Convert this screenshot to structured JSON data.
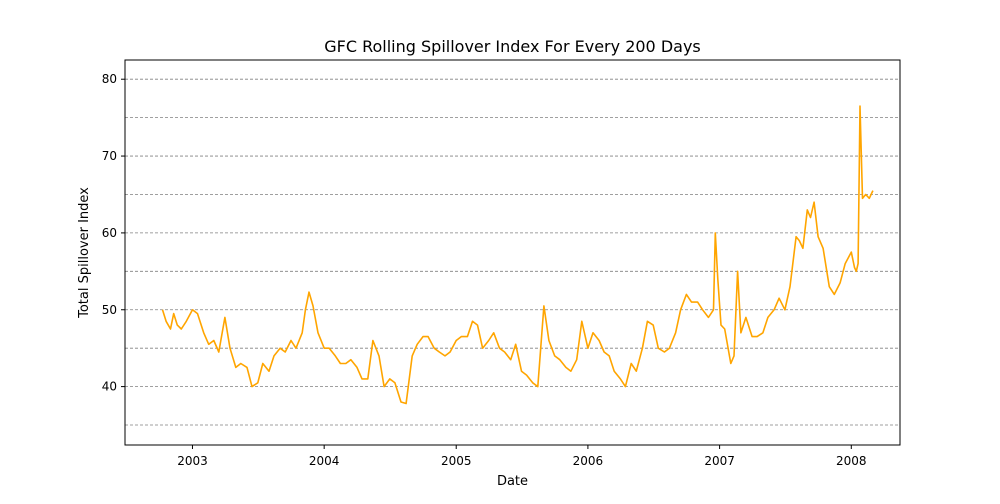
{
  "chart_data": {
    "type": "line",
    "title": "GFC Rolling Spillover Index For Every 200 Days",
    "xlabel": "Date",
    "ylabel": "Total Spillover Index",
    "xlim": [
      "2002-06-28",
      "2008-05-15"
    ],
    "ylim": [
      32.4,
      82.5
    ],
    "x_ticks": [
      {
        "date": "2003-01-01",
        "label": "2003"
      },
      {
        "date": "2004-01-01",
        "label": "2004"
      },
      {
        "date": "2005-01-01",
        "label": "2005"
      },
      {
        "date": "2006-01-01",
        "label": "2006"
      },
      {
        "date": "2007-01-01",
        "label": "2007"
      },
      {
        "date": "2008-01-01",
        "label": "2008"
      }
    ],
    "y_ticks": [
      40,
      50,
      60,
      70,
      80
    ],
    "grid": {
      "axis": "y",
      "values": [
        35,
        40,
        45,
        50,
        55,
        60,
        65,
        70,
        75,
        80
      ],
      "style": "dashed"
    },
    "colors": {
      "line": "#FFA500",
      "grid": "#808080"
    },
    "series": [
      {
        "x": [
          "2002-10-10",
          "2002-10-20",
          "2002-11-01",
          "2002-11-10",
          "2002-11-20",
          "2002-12-01",
          "2002-12-15",
          "2003-01-01",
          "2003-01-15",
          "2003-02-01",
          "2003-02-15",
          "2003-03-01",
          "2003-03-15",
          "2003-04-01",
          "2003-04-15",
          "2003-05-01",
          "2003-05-15",
          "2003-06-01",
          "2003-06-15",
          "2003-07-01",
          "2003-07-15",
          "2003-08-01",
          "2003-08-15",
          "2003-09-01",
          "2003-09-15",
          "2003-10-01",
          "2003-10-15",
          "2003-11-01",
          "2003-11-10",
          "2003-11-20",
          "2003-12-01",
          "2003-12-15",
          "2004-01-01",
          "2004-01-15",
          "2004-02-01",
          "2004-02-15",
          "2004-03-01",
          "2004-03-15",
          "2004-04-01",
          "2004-04-15",
          "2004-05-01",
          "2004-05-15",
          "2004-06-01",
          "2004-06-15",
          "2004-07-01",
          "2004-07-15",
          "2004-08-01",
          "2004-08-15",
          "2004-09-01",
          "2004-09-15",
          "2004-10-01",
          "2004-10-15",
          "2004-11-01",
          "2004-11-15",
          "2004-12-01",
          "2004-12-15",
          "2005-01-01",
          "2005-01-15",
          "2005-02-01",
          "2005-02-15",
          "2005-03-01",
          "2005-03-15",
          "2005-04-01",
          "2005-04-15",
          "2005-05-01",
          "2005-05-15",
          "2005-06-01",
          "2005-06-15",
          "2005-07-01",
          "2005-07-15",
          "2005-08-01",
          "2005-08-15",
          "2005-09-01",
          "2005-09-15",
          "2005-10-01",
          "2005-10-15",
          "2005-11-01",
          "2005-11-15",
          "2005-12-01",
          "2005-12-15",
          "2006-01-01",
          "2006-01-15",
          "2006-02-01",
          "2006-02-15",
          "2006-03-01",
          "2006-03-15",
          "2006-04-01",
          "2006-04-15",
          "2006-05-01",
          "2006-05-15",
          "2006-06-01",
          "2006-06-15",
          "2006-07-01",
          "2006-07-15",
          "2006-08-01",
          "2006-08-15",
          "2006-09-01",
          "2006-09-15",
          "2006-10-01",
          "2006-10-15",
          "2006-11-01",
          "2006-11-15",
          "2006-12-01",
          "2006-12-15",
          "2006-12-20",
          "2006-12-27",
          "2007-01-05",
          "2007-01-15",
          "2007-02-01",
          "2007-02-10",
          "2007-02-20",
          "2007-03-01",
          "2007-03-15",
          "2007-04-01",
          "2007-04-15",
          "2007-05-01",
          "2007-05-15",
          "2007-06-01",
          "2007-06-15",
          "2007-07-01",
          "2007-07-15",
          "2007-08-01",
          "2007-08-10",
          "2007-08-20",
          "2007-09-01",
          "2007-09-10",
          "2007-09-20",
          "2007-10-01",
          "2007-10-15",
          "2007-11-01",
          "2007-11-15",
          "2007-12-01",
          "2007-12-15",
          "2008-01-01",
          "2008-01-10",
          "2008-01-15",
          "2008-01-20",
          "2008-01-25",
          "2008-02-01",
          "2008-02-10",
          "2008-02-20",
          "2008-03-01"
        ],
        "y": [
          50,
          48.5,
          47.5,
          49.5,
          48,
          47.5,
          48.5,
          50,
          49.5,
          47,
          45.5,
          46,
          44.5,
          49,
          45,
          42.5,
          43,
          42.5,
          40,
          40.5,
          43,
          42,
          44,
          45,
          44.5,
          46,
          45,
          47,
          50,
          52.3,
          50.5,
          47,
          45,
          45,
          44,
          43,
          43,
          43.5,
          42.5,
          41,
          41,
          46,
          44,
          40,
          41,
          40.5,
          38,
          37.8,
          44,
          45.5,
          46.5,
          46.5,
          45,
          44.5,
          44,
          44.5,
          46,
          46.5,
          46.5,
          48.5,
          48,
          45,
          46,
          47,
          45,
          44.5,
          43.5,
          45.5,
          42,
          41.5,
          40.5,
          40,
          50.5,
          46,
          44,
          43.5,
          42.5,
          42,
          43.5,
          48.5,
          45,
          47,
          46,
          44.5,
          44,
          42,
          41,
          40,
          43,
          42,
          45,
          48.5,
          48,
          45,
          44.5,
          45,
          47,
          50,
          52,
          51,
          51,
          50,
          49,
          50,
          60,
          54,
          48,
          47.5,
          43,
          44,
          55,
          47,
          49,
          46.5,
          46.5,
          47,
          49,
          50,
          51.5,
          50,
          53,
          59.5,
          59,
          58,
          63,
          62,
          64,
          59.5,
          58,
          53,
          52,
          53.5,
          56,
          57.5,
          55.5,
          55,
          56,
          76.5,
          64.5,
          65,
          64.5,
          65.5
        ]
      }
    ]
  }
}
